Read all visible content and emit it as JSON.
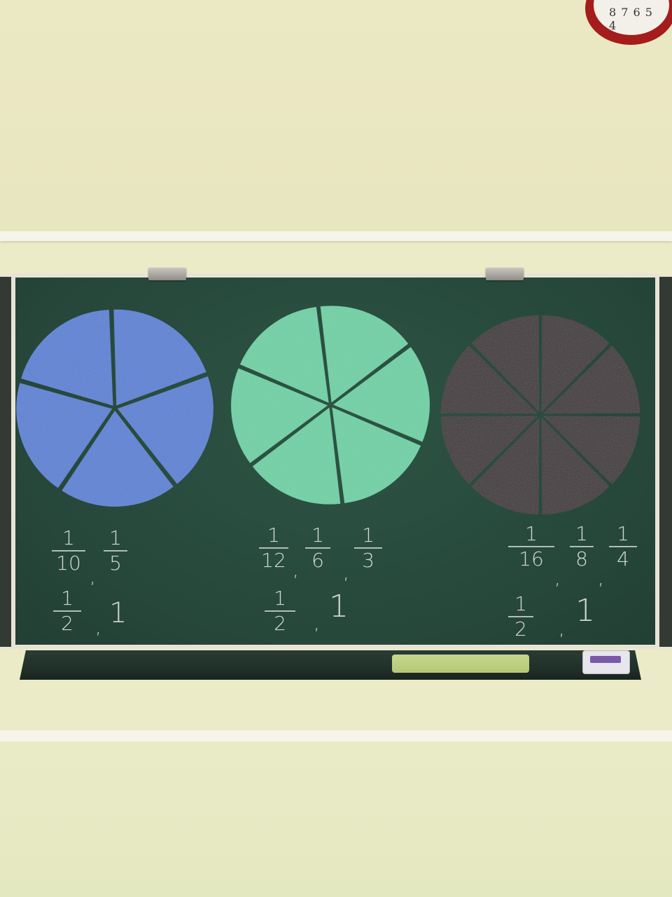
{
  "colors": {
    "wall": "#ebe8c4",
    "chalkboard": "#26473a",
    "frame": "#e7e4d6",
    "blue_disc": "#5b82d6",
    "green_disc": "#6ed1a6",
    "dark_disc": "#3b3334",
    "chalk": "#e8ebe6"
  },
  "clock": {
    "numerals": "8 7 6 5 4"
  },
  "discs": [
    {
      "name": "blue-fraction-disc",
      "pieces": 5,
      "fraction_each": "1/5"
    },
    {
      "name": "green-fraction-disc",
      "pieces": 6,
      "fraction_each": "1/6"
    },
    {
      "name": "dark-fraction-disc",
      "pieces": 8,
      "fraction_each": "1/8"
    }
  ],
  "chalk_writing": {
    "group1": {
      "row1": [
        {
          "num": "1",
          "den": "10"
        },
        {
          "num": "1",
          "den": "5"
        }
      ],
      "row2": [
        {
          "num": "1",
          "den": "2"
        }
      ],
      "whole": "1"
    },
    "group2": {
      "row1": [
        {
          "num": "1",
          "den": "12"
        },
        {
          "num": "1",
          "den": "6"
        },
        {
          "num": "1",
          "den": "3"
        }
      ],
      "row2": [
        {
          "num": "1",
          "den": "2"
        }
      ],
      "whole": "1"
    },
    "group3": {
      "row1": [
        {
          "num": "1",
          "den": "16"
        },
        {
          "num": "1",
          "den": "8"
        },
        {
          "num": "1",
          "den": "4"
        }
      ],
      "row2": [
        {
          "num": "1",
          "den": "2"
        }
      ],
      "whole": "1"
    },
    "separator": ","
  }
}
